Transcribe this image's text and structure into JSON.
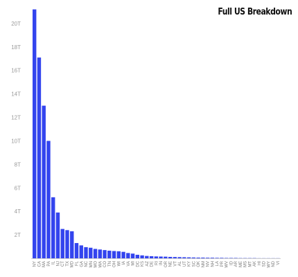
{
  "chart_data": {
    "type": "bar",
    "title": "Full US Breakdown",
    "xlabel": "",
    "ylabel": "",
    "ylim": [
      0,
      22
    ],
    "y_ticks": [
      2,
      4,
      6,
      8,
      10,
      12,
      14,
      16,
      18,
      20
    ],
    "y_tick_labels": [
      "2T",
      "4T",
      "6T",
      "8T",
      "10T",
      "12T",
      "14T",
      "16T",
      "18T",
      "20T"
    ],
    "grid": false,
    "legend": "none",
    "bar_color": "#3344ee",
    "categories": [
      "NY",
      "CA",
      "MA",
      "PA",
      "IL",
      "NJ",
      "CT",
      "TX",
      "MD",
      "FL",
      "GA",
      "NC",
      "MN",
      "MO",
      "WA",
      "CO",
      "TN",
      "OH",
      "WI",
      "IA",
      "VA",
      "MI",
      "DC",
      "KS",
      "AZ",
      "DE",
      "RI",
      "IN",
      "OR",
      "NE",
      "VT",
      "AL",
      "UT",
      "KY",
      "SC",
      "OK",
      "NM",
      "NV",
      "NH",
      "LA",
      "PR",
      "WV",
      "ID",
      "AR",
      "ME",
      "MS",
      "MT",
      "AK",
      "HI",
      "SD",
      "WY",
      "ND",
      "VI"
    ],
    "values": [
      21.2,
      17.1,
      13.0,
      10.0,
      5.2,
      3.9,
      2.5,
      2.4,
      2.3,
      1.3,
      1.1,
      0.95,
      0.9,
      0.8,
      0.75,
      0.7,
      0.65,
      0.62,
      0.6,
      0.55,
      0.45,
      0.4,
      0.3,
      0.25,
      0.2,
      0.18,
      0.16,
      0.15,
      0.14,
      0.12,
      0.11,
      0.1,
      0.09,
      0.08,
      0.07,
      0.06,
      0.06,
      0.05,
      0.05,
      0.04,
      0.04,
      0.03,
      0.03,
      0.03,
      0.02,
      0.02,
      0.02,
      0.02,
      0.01,
      0.01,
      0.01,
      0.01,
      0.01
    ]
  }
}
